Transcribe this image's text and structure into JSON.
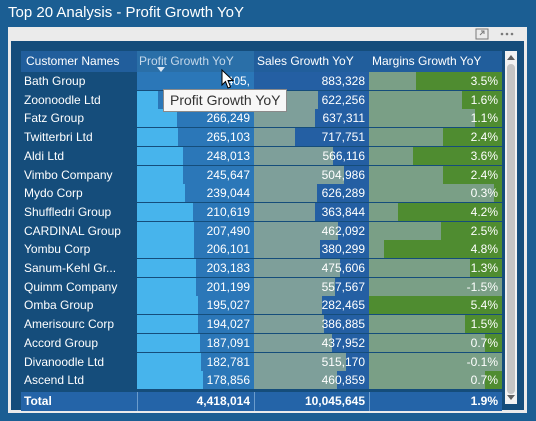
{
  "title": "Top 20 Analysis - Profit Growth YoY",
  "toolbar_icons": [
    "expand-icon",
    "more-options-icon"
  ],
  "table": {
    "columns": [
      "Customer Names",
      "Profit Growth YoY",
      "Sales Growth YoY",
      "Margins Growth YoY"
    ],
    "sorted_column": "Profit Growth YoY",
    "rows": [
      {
        "name": "Bath Group",
        "profit": "405,",
        "profit_pct": 100,
        "sales": "883,328",
        "sales_pct": 100,
        "margin": "3.5%",
        "margin_pct": 65
      },
      {
        "name": "Zoonoodle Ltd",
        "profit": "",
        "profit_pct": 82,
        "sales": "622,256",
        "sales_pct": 44,
        "margin": "1.6%",
        "margin_pct": 30
      },
      {
        "name": "Fatz Group",
        "profit": "266,249",
        "profit_pct": 66,
        "sales": "637,311",
        "sales_pct": 47,
        "margin": "1.1%",
        "margin_pct": 20
      },
      {
        "name": "Twitterbri Ltd",
        "profit": "265,103",
        "profit_pct": 65,
        "sales": "717,751",
        "sales_pct": 64,
        "margin": "2.4%",
        "margin_pct": 44
      },
      {
        "name": "Aldi Ltd",
        "profit": "248,013",
        "profit_pct": 61,
        "sales": "566,116",
        "sales_pct": 31,
        "margin": "3.6%",
        "margin_pct": 67
      },
      {
        "name": "Vimbo Company",
        "profit": "245,647",
        "profit_pct": 61,
        "sales": "504,986",
        "sales_pct": 22,
        "margin": "2.4%",
        "margin_pct": 44
      },
      {
        "name": "Mydo Corp",
        "profit": "239,044",
        "profit_pct": 59,
        "sales": "626,289",
        "sales_pct": 45,
        "margin": "0.3%",
        "margin_pct": 6
      },
      {
        "name": "Shuffledri Group",
        "profit": "210,619",
        "profit_pct": 52,
        "sales": "363,844",
        "sales_pct": 47,
        "margin": "4.2%",
        "margin_pct": 78
      },
      {
        "name": "CARDINAL Group",
        "profit": "207,490",
        "profit_pct": 51,
        "sales": "462,092",
        "sales_pct": 27,
        "margin": "2.5%",
        "margin_pct": 46
      },
      {
        "name": "Yombu Corp",
        "profit": "206,101",
        "profit_pct": 51,
        "sales": "380,299",
        "sales_pct": 43,
        "margin": "4.8%",
        "margin_pct": 89
      },
      {
        "name": "Sanum-Kehl Gr...",
        "profit": "203,183",
        "profit_pct": 50,
        "sales": "475,606",
        "sales_pct": 25,
        "margin": "1.3%",
        "margin_pct": 24
      },
      {
        "name": "Quimm Company",
        "profit": "201,199",
        "profit_pct": 50,
        "sales": "557,567",
        "sales_pct": 30,
        "margin": "-1.5%",
        "margin_pct": 0
      },
      {
        "name": "Omba Group",
        "profit": "195,027",
        "profit_pct": 48,
        "sales": "282,465",
        "sales_pct": 41,
        "margin": "5.4%",
        "margin_pct": 100
      },
      {
        "name": "Amerisourc Corp",
        "profit": "194,027",
        "profit_pct": 48,
        "sales": "386,885",
        "sales_pct": 39,
        "margin": "1.5%",
        "margin_pct": 28
      },
      {
        "name": "Accord Group",
        "profit": "187,091",
        "profit_pct": 46,
        "sales": "437,952",
        "sales_pct": 32,
        "margin": "0.7%",
        "margin_pct": 13
      },
      {
        "name": "Divanoodle Ltd",
        "profit": "182,781",
        "profit_pct": 45,
        "sales": "515,170",
        "sales_pct": 20,
        "margin": "-0.1%",
        "margin_pct": 0
      },
      {
        "name": "Ascend Ltd",
        "profit": "178,856",
        "profit_pct": 44,
        "sales": "460,859",
        "sales_pct": 28,
        "margin": "0.7%",
        "margin_pct": 13
      }
    ],
    "total": {
      "label": "Total",
      "profit": "4,418,014",
      "sales": "10,045,645",
      "margin": "1.9%"
    }
  },
  "tooltip": "Profit Growth YoY",
  "colors": {
    "background": "#1b5e93",
    "header": "#215e9c",
    "profit_bar": "#2b77b8",
    "sales_bar": "#245fa3",
    "margin_bar": "#4f8c30"
  }
}
